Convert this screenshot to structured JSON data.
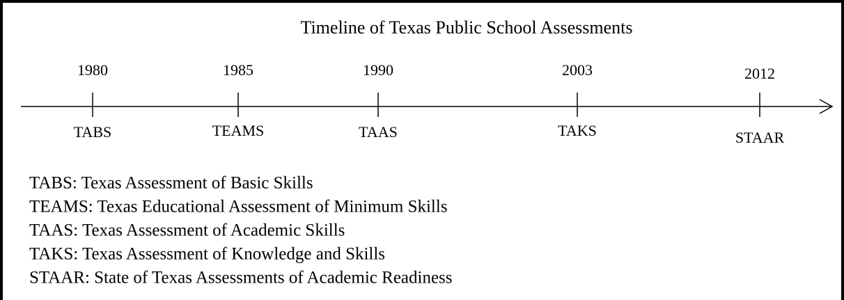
{
  "title": "Timeline of Texas Public School Assessments",
  "events": [
    {
      "year": "1980",
      "label": "TABS"
    },
    {
      "year": "1985",
      "label": "TEAMS"
    },
    {
      "year": "1990",
      "label": "TAAS"
    },
    {
      "year": "2003",
      "label": "TAKS"
    },
    {
      "year": "2012",
      "label": "STAAR"
    }
  ],
  "legend": [
    "TABS: Texas Assessment of Basic Skills",
    "TEAMS: Texas Educational Assessment of Minimum Skills",
    "TAAS: Texas Assessment of Academic Skills",
    "TAKS: Texas Assessment of Knowledge and Skills",
    "STAAR: State of Texas Assessments of Academic Readiness"
  ]
}
